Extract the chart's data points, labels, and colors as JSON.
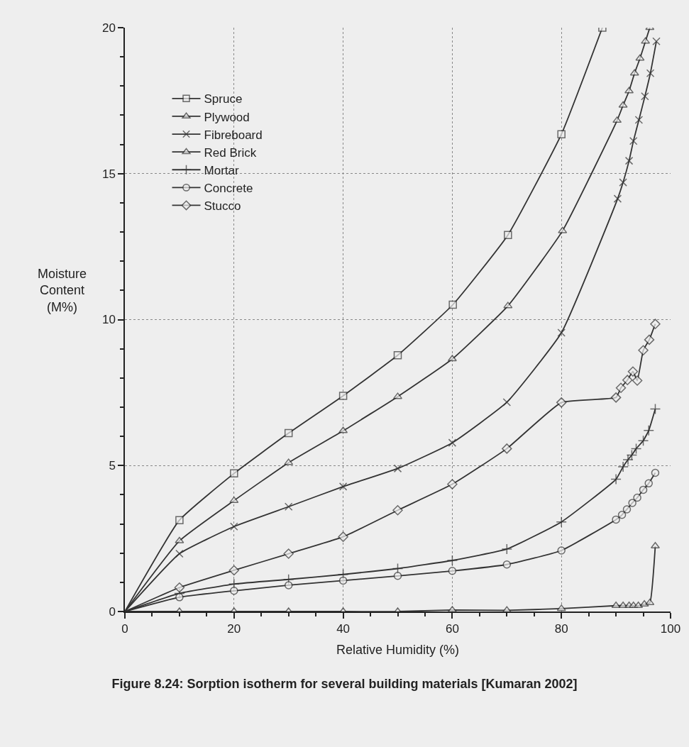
{
  "chart_data": {
    "type": "line",
    "title": "Figure 8.24: Sorption isotherm for several building materials [Kumaran 2002]",
    "xlabel": "Relative Humidity (%)",
    "ylabel": "Moisture Content (M%)",
    "xlim": [
      0,
      100
    ],
    "xticks": [
      0,
      20,
      40,
      60,
      80,
      100
    ],
    "ylim": [
      0,
      20
    ],
    "yticks": [
      0,
      5,
      10,
      15,
      20
    ],
    "grid": true,
    "legend": "top left",
    "line_style": "solid",
    "series": [
      {
        "name": "Spruce",
        "color": "#333333",
        "marker": "square",
        "x": [
          0,
          10,
          20,
          30,
          40,
          50,
          60.1,
          70.2,
          80,
          87.5
        ],
        "values": [
          0,
          3.13,
          4.73,
          6.11,
          7.39,
          8.78,
          10.51,
          12.9,
          16.35,
          20
        ]
      },
      {
        "name": "Plywood",
        "color": "#333333",
        "marker": "triangle",
        "x": [
          0,
          10,
          20,
          30,
          40,
          50,
          60,
          70.2,
          80.2,
          90.2,
          91.3,
          92.4,
          93.4,
          94.4,
          95.4,
          96.2
        ],
        "values": [
          0,
          2.42,
          3.8,
          5.1,
          6.19,
          7.36,
          8.65,
          10.47,
          13.04,
          16.82,
          17.34,
          17.83,
          18.44,
          18.95,
          19.53,
          20
        ]
      },
      {
        "name": "Fibreboard",
        "color": "#333333",
        "marker": "cross",
        "x": [
          0,
          10,
          20,
          30,
          40,
          50,
          60,
          70,
          80,
          90.3,
          91.3,
          92.4,
          93.2,
          94.2,
          95.3,
          96.3,
          97.4
        ],
        "values": [
          0,
          1.98,
          2.91,
          3.59,
          4.28,
          4.9,
          5.78,
          7.17,
          9.55,
          14.14,
          14.7,
          15.44,
          16.12,
          16.84,
          17.65,
          18.44,
          19.53
        ]
      },
      {
        "name": "Red Brick",
        "color": "#333333",
        "marker": "triangle",
        "x": [
          0,
          10,
          20,
          30,
          40,
          50,
          60,
          70,
          80,
          90,
          91.3,
          92.4,
          93.2,
          94.1,
          95.2,
          96.2,
          97.2
        ],
        "values": [
          0,
          0,
          0,
          0,
          0,
          0,
          0.05,
          0.04,
          0.1,
          0.2,
          0.2,
          0.2,
          0.2,
          0.2,
          0.25,
          0.3,
          2.24
        ]
      },
      {
        "name": "Mortar",
        "color": "#333333",
        "marker": "plus",
        "x": [
          0,
          10,
          20,
          30,
          40,
          50,
          60,
          70,
          80,
          90,
          91.3,
          92.2,
          92.9,
          93.7,
          95,
          96,
          97.2
        ],
        "values": [
          0,
          0.62,
          0.94,
          1.1,
          1.27,
          1.47,
          1.75,
          2.14,
          3.07,
          4.53,
          4.96,
          5.2,
          5.36,
          5.58,
          5.85,
          6.2,
          6.94
        ]
      },
      {
        "name": "Concrete",
        "color": "#333333",
        "marker": "circle",
        "x": [
          0,
          10,
          20,
          30,
          40,
          50,
          60,
          70,
          80,
          90,
          91.1,
          92,
          93,
          93.9,
          95,
          96,
          97.2
        ],
        "values": [
          0,
          0.49,
          0.71,
          0.9,
          1.06,
          1.22,
          1.39,
          1.61,
          2.09,
          3.15,
          3.31,
          3.5,
          3.72,
          3.9,
          4.17,
          4.39,
          4.75
        ]
      },
      {
        "name": "Stucco",
        "color": "#333333",
        "marker": "diamond",
        "x": [
          0,
          10,
          20,
          30,
          40,
          50,
          60,
          70,
          80,
          90,
          90.9,
          92.1,
          93.1,
          93.9,
          95,
          96.1,
          97.2
        ],
        "values": [
          0,
          0.82,
          1.41,
          1.98,
          2.56,
          3.47,
          4.36,
          5.58,
          7.16,
          7.33,
          7.66,
          7.93,
          8.22,
          7.91,
          8.95,
          9.31,
          9.85
        ]
      }
    ]
  }
}
